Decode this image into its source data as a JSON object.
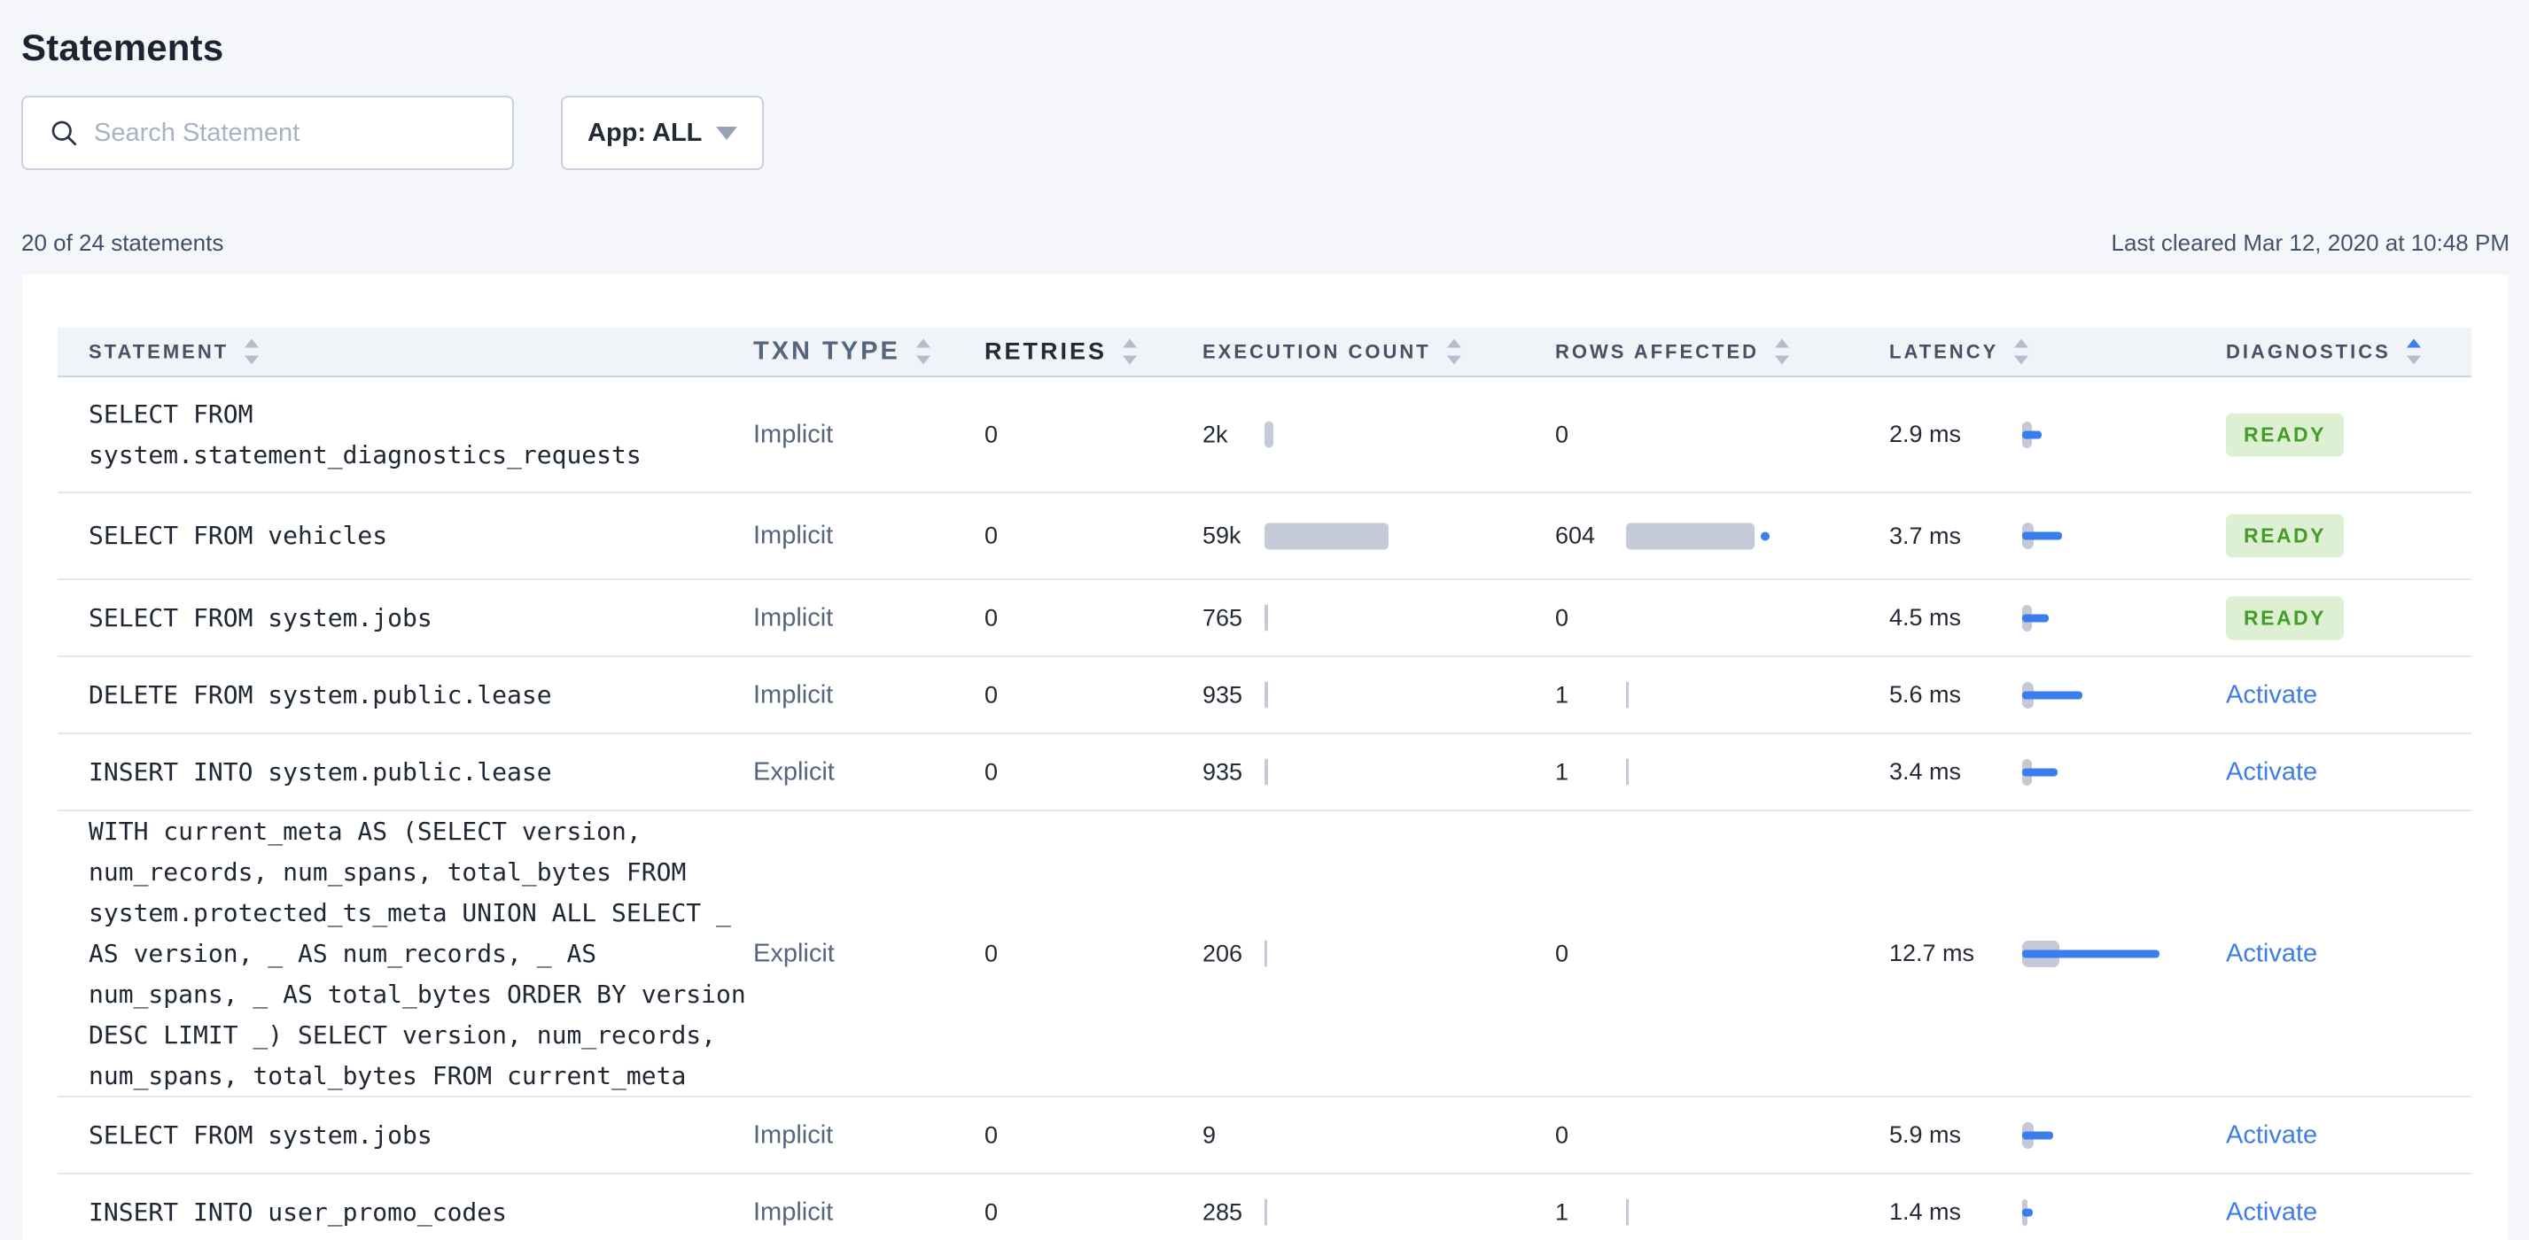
{
  "page": {
    "title": "Statements",
    "search": {
      "placeholder": "Search Statement",
      "value": ""
    },
    "app_filter": {
      "label": "App: ALL"
    },
    "summary": "20 of 24 statements",
    "last_cleared": "Last cleared Mar 12, 2020 at 10:48 PM"
  },
  "colors": {
    "accent_blue": "#3a7ded",
    "bar_grey": "#c5cad8",
    "badge_green_bg": "#def0d4",
    "badge_green_text": "#449d26",
    "page_bg": "#f4f6fa",
    "header_text": "#475066"
  },
  "table": {
    "columns": [
      {
        "label": "STATEMENT",
        "sort": "none"
      },
      {
        "label": "TXN TYPE",
        "sort": "none"
      },
      {
        "label": "RETRIES",
        "sort": "none"
      },
      {
        "label": "EXECUTION COUNT",
        "sort": "none"
      },
      {
        "label": "ROWS AFFECTED",
        "sort": "none"
      },
      {
        "label": "LATENCY",
        "sort": "none"
      },
      {
        "label": "DIAGNOSTICS",
        "sort": "asc"
      }
    ],
    "rows": [
      {
        "statement": "SELECT FROM system.statement_diagnostics_requests",
        "txn_type": "Implicit",
        "retries": "0",
        "execution_count": "2k",
        "exec_bar_w": 10,
        "rows_affected": "0",
        "rows_bar_w": 0,
        "latency": "2.9 ms",
        "latency_bar_w": 22,
        "latency_sd_w": 11,
        "diagnostics": "READY"
      },
      {
        "statement": "SELECT FROM vehicles",
        "txn_type": "Implicit",
        "retries": "0",
        "execution_count": "59k",
        "exec_bar_w": 140,
        "rows_affected": "604",
        "rows_bar_w": 145,
        "latency": "3.7 ms",
        "latency_bar_w": 45,
        "latency_sd_w": 13,
        "diagnostics": "READY"
      },
      {
        "statement": "SELECT FROM system.jobs",
        "txn_type": "Implicit",
        "retries": "0",
        "execution_count": "765",
        "exec_bar_w": 4,
        "rows_affected": "0",
        "rows_bar_w": 0,
        "latency": "4.5 ms",
        "latency_bar_w": 30,
        "latency_sd_w": 11,
        "diagnostics": "READY"
      },
      {
        "statement": "DELETE FROM system.public.lease",
        "txn_type": "Implicit",
        "retries": "0",
        "execution_count": "935",
        "exec_bar_w": 4,
        "rows_affected": "1",
        "rows_bar_w": 3,
        "latency": "5.6 ms",
        "latency_bar_w": 68,
        "latency_sd_w": 13,
        "diagnostics": "Activate"
      },
      {
        "statement": "INSERT INTO system.public.lease",
        "txn_type": "Explicit",
        "retries": "0",
        "execution_count": "935",
        "exec_bar_w": 4,
        "rows_affected": "1",
        "rows_bar_w": 3,
        "latency": "3.4 ms",
        "latency_bar_w": 40,
        "latency_sd_w": 11,
        "diagnostics": "Activate"
      },
      {
        "statement": "WITH current_meta AS (SELECT version, num_records, num_spans, total_bytes FROM system.protected_ts_meta UNION ALL SELECT _ AS version, _ AS num_records, _ AS num_spans, _ AS total_bytes ORDER BY version DESC LIMIT _) SELECT version, num_records, num_spans, total_bytes FROM current_meta",
        "txn_type": "Explicit",
        "retries": "0",
        "execution_count": "206",
        "exec_bar_w": 3,
        "rows_affected": "0",
        "rows_bar_w": 0,
        "latency": "12.7 ms",
        "latency_bar_w": 155,
        "latency_sd_w": 42,
        "diagnostics": "Activate"
      },
      {
        "statement": "SELECT FROM system.jobs",
        "txn_type": "Implicit",
        "retries": "0",
        "execution_count": "9",
        "exec_bar_w": 0,
        "rows_affected": "0",
        "rows_bar_w": 0,
        "latency": "5.9 ms",
        "latency_bar_w": 35,
        "latency_sd_w": 13,
        "diagnostics": "Activate"
      },
      {
        "statement": "INSERT INTO user_promo_codes",
        "txn_type": "Implicit",
        "retries": "0",
        "execution_count": "285",
        "exec_bar_w": 3,
        "rows_affected": "1",
        "rows_bar_w": 3,
        "latency": "1.4 ms",
        "latency_bar_w": 12,
        "latency_sd_w": 6,
        "diagnostics": "Activate"
      }
    ]
  }
}
